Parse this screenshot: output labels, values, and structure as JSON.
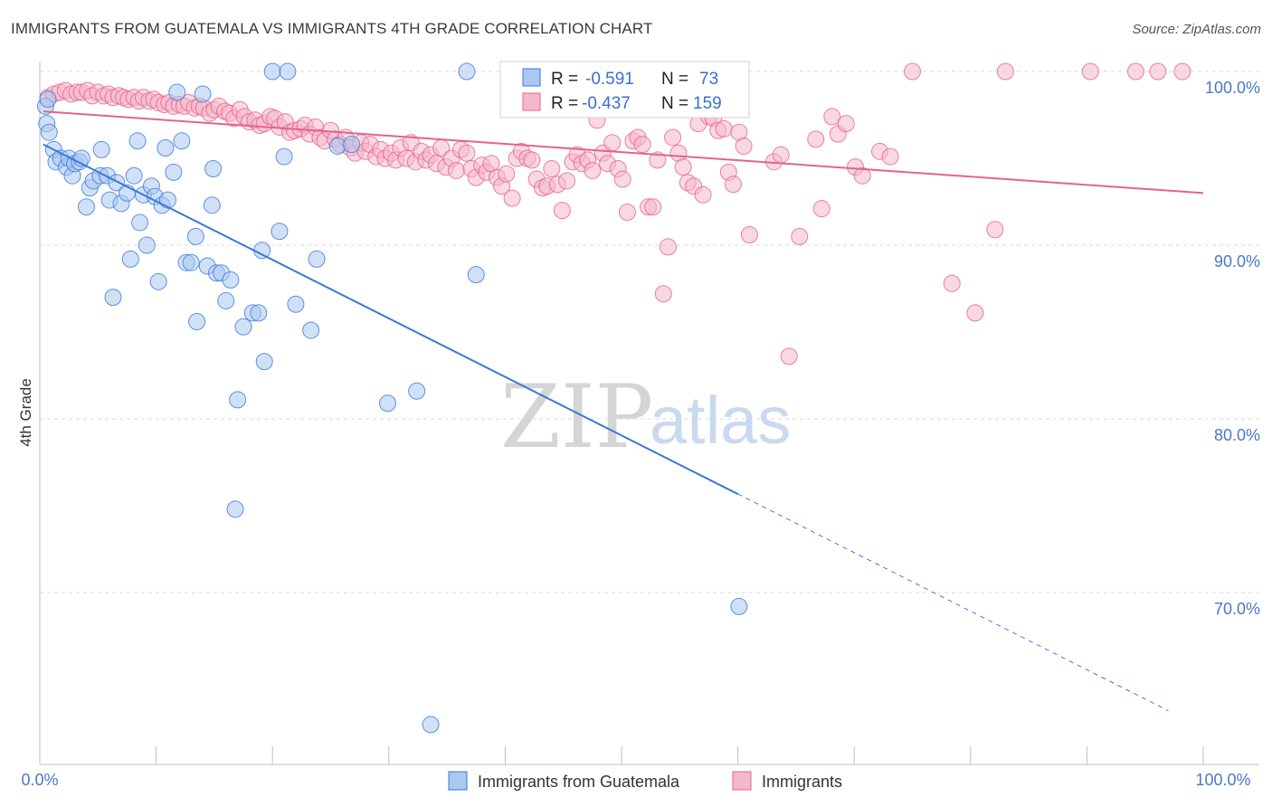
{
  "title": "IMMIGRANTS FROM GUATEMALA VS IMMIGRANTS 4TH GRADE CORRELATION CHART",
  "source": "Source: ZipAtlas.com",
  "watermark": {
    "zip": "ZIP",
    "atlas": "atlas"
  },
  "colors": {
    "blue": "#3b78d8",
    "blue_fill": "#aac8f0",
    "pink": "#e2648c",
    "pink_fill": "#f5b8ca",
    "tick_blue": "#4a78c8",
    "grid": "#d9d9d9"
  },
  "legend_box": {
    "rows": [
      {
        "r_label": "R =",
        "r_value": "-0.591",
        "n_label": "N =",
        "n_value": "73"
      },
      {
        "r_label": "R =",
        "r_value": "-0.437",
        "n_label": "N =",
        "n_value": "159"
      }
    ]
  },
  "chart_data": {
    "type": "scatter",
    "xlabel": "",
    "ylabel": "4th Grade",
    "xlim": [
      0,
      100
    ],
    "ylim": [
      62,
      101.5
    ],
    "x_tick_labels": [
      "0.0%",
      "100.0%"
    ],
    "y_ticks": [
      100,
      90,
      80,
      70
    ],
    "y_tick_labels": [
      "100.0%",
      "90.0%",
      "80.0%",
      "70.0%"
    ],
    "grid": "horizontal dashed",
    "legend_position": "bottom",
    "series": [
      {
        "name": "Immigrants from Guatemala",
        "color": "#3b78d8",
        "trend": {
          "x_start": 0.3,
          "y_start": 95.8,
          "x_solid_end": 60,
          "x_end": 97,
          "y_end": 63.2
        },
        "points": [
          [
            0.5,
            98.0
          ],
          [
            0.6,
            97.0
          ],
          [
            0.8,
            96.5
          ],
          [
            1.2,
            95.5
          ],
          [
            1.4,
            94.8
          ],
          [
            1.8,
            95.0
          ],
          [
            2.3,
            94.5
          ],
          [
            2.5,
            95.0
          ],
          [
            2.8,
            94.0
          ],
          [
            3.0,
            94.7
          ],
          [
            3.4,
            94.8
          ],
          [
            3.6,
            95.0
          ],
          [
            4.0,
            92.2
          ],
          [
            4.3,
            93.3
          ],
          [
            4.6,
            93.7
          ],
          [
            5.2,
            94.0
          ],
          [
            5.3,
            95.5
          ],
          [
            5.8,
            94.0
          ],
          [
            6.0,
            92.6
          ],
          [
            6.3,
            87.0
          ],
          [
            6.6,
            93.6
          ],
          [
            7.0,
            92.4
          ],
          [
            7.5,
            93.0
          ],
          [
            7.8,
            89.2
          ],
          [
            8.1,
            94.0
          ],
          [
            8.4,
            96.0
          ],
          [
            8.6,
            91.3
          ],
          [
            8.9,
            92.9
          ],
          [
            9.2,
            90.0
          ],
          [
            9.6,
            93.4
          ],
          [
            9.9,
            92.8
          ],
          [
            10.2,
            87.9
          ],
          [
            10.5,
            92.3
          ],
          [
            10.8,
            95.6
          ],
          [
            11.0,
            92.6
          ],
          [
            11.5,
            94.2
          ],
          [
            11.8,
            98.8
          ],
          [
            12.2,
            96.0
          ],
          [
            12.6,
            89.0
          ],
          [
            13.0,
            89.0
          ],
          [
            13.4,
            90.5
          ],
          [
            13.5,
            85.6
          ],
          [
            14.0,
            98.7
          ],
          [
            14.4,
            88.8
          ],
          [
            14.8,
            92.3
          ],
          [
            14.9,
            94.4
          ],
          [
            15.2,
            88.4
          ],
          [
            15.6,
            88.4
          ],
          [
            16.0,
            86.8
          ],
          [
            16.4,
            88.0
          ],
          [
            16.8,
            74.8
          ],
          [
            17.0,
            81.1
          ],
          [
            17.5,
            85.3
          ],
          [
            18.3,
            86.1
          ],
          [
            18.8,
            86.1
          ],
          [
            19.1,
            89.7
          ],
          [
            19.3,
            83.3
          ],
          [
            20.0,
            100.0
          ],
          [
            20.6,
            90.8
          ],
          [
            21.0,
            95.1
          ],
          [
            21.3,
            100.0
          ],
          [
            22.0,
            86.6
          ],
          [
            23.3,
            85.1
          ],
          [
            23.8,
            89.2
          ],
          [
            25.6,
            95.7
          ],
          [
            26.8,
            95.8
          ],
          [
            29.9,
            80.9
          ],
          [
            32.4,
            81.6
          ],
          [
            33.6,
            62.4
          ],
          [
            36.7,
            100.0
          ],
          [
            37.5,
            88.3
          ],
          [
            60.1,
            69.2
          ],
          [
            0.7,
            98.4
          ]
        ]
      },
      {
        "name": "Immigrants",
        "color": "#e2648c",
        "trend": {
          "x_start": 0.3,
          "y_start": 97.7,
          "x_end": 100,
          "y_end": 93.0
        },
        "points": [
          [
            0.7,
            98.5
          ],
          [
            1.2,
            98.7
          ],
          [
            1.7,
            98.8
          ],
          [
            2.2,
            98.9
          ],
          [
            2.7,
            98.7
          ],
          [
            3.2,
            98.8
          ],
          [
            3.6,
            98.8
          ],
          [
            4.1,
            98.9
          ],
          [
            4.5,
            98.6
          ],
          [
            5.0,
            98.8
          ],
          [
            5.5,
            98.6
          ],
          [
            5.9,
            98.7
          ],
          [
            6.3,
            98.5
          ],
          [
            6.8,
            98.6
          ],
          [
            7.2,
            98.5
          ],
          [
            7.6,
            98.4
          ],
          [
            8.1,
            98.5
          ],
          [
            8.5,
            98.3
          ],
          [
            8.9,
            98.5
          ],
          [
            9.4,
            98.3
          ],
          [
            9.8,
            98.4
          ],
          [
            10.2,
            98.2
          ],
          [
            10.7,
            98.1
          ],
          [
            11.1,
            98.2
          ],
          [
            11.5,
            98.0
          ],
          [
            12.0,
            98.1
          ],
          [
            12.4,
            98.0
          ],
          [
            12.8,
            98.2
          ],
          [
            13.3,
            97.9
          ],
          [
            13.7,
            98.0
          ],
          [
            14.1,
            97.9
          ],
          [
            14.6,
            97.6
          ],
          [
            15.0,
            97.8
          ],
          [
            15.4,
            98.0
          ],
          [
            15.9,
            97.7
          ],
          [
            16.3,
            97.6
          ],
          [
            16.7,
            97.3
          ],
          [
            17.2,
            97.8
          ],
          [
            17.6,
            97.4
          ],
          [
            18.0,
            97.1
          ],
          [
            18.5,
            97.2
          ],
          [
            18.9,
            96.9
          ],
          [
            19.3,
            97.0
          ],
          [
            19.8,
            97.4
          ],
          [
            20.2,
            97.3
          ],
          [
            20.6,
            96.8
          ],
          [
            21.1,
            97.1
          ],
          [
            21.5,
            96.5
          ],
          [
            21.9,
            96.6
          ],
          [
            22.4,
            96.7
          ],
          [
            22.8,
            96.9
          ],
          [
            23.2,
            96.4
          ],
          [
            23.7,
            96.8
          ],
          [
            24.1,
            96.2
          ],
          [
            24.5,
            96.0
          ],
          [
            25.0,
            96.6
          ],
          [
            25.4,
            96.1
          ],
          [
            25.8,
            95.8
          ],
          [
            26.3,
            96.2
          ],
          [
            26.7,
            95.6
          ],
          [
            27.1,
            95.3
          ],
          [
            27.6,
            95.9
          ],
          [
            28.0,
            95.4
          ],
          [
            28.4,
            95.8
          ],
          [
            28.9,
            95.1
          ],
          [
            29.3,
            95.5
          ],
          [
            29.7,
            95.0
          ],
          [
            30.2,
            95.3
          ],
          [
            30.6,
            94.9
          ],
          [
            31.0,
            95.6
          ],
          [
            31.5,
            95.0
          ],
          [
            31.9,
            95.9
          ],
          [
            32.3,
            94.8
          ],
          [
            32.8,
            95.4
          ],
          [
            33.2,
            94.9
          ],
          [
            33.6,
            95.2
          ],
          [
            34.1,
            94.7
          ],
          [
            34.5,
            95.6
          ],
          [
            34.9,
            94.5
          ],
          [
            35.4,
            95.0
          ],
          [
            35.8,
            94.3
          ],
          [
            36.2,
            95.5
          ],
          [
            36.7,
            95.3
          ],
          [
            37.1,
            94.4
          ],
          [
            37.5,
            93.9
          ],
          [
            38.0,
            94.6
          ],
          [
            38.4,
            94.2
          ],
          [
            38.8,
            94.7
          ],
          [
            39.3,
            93.9
          ],
          [
            39.7,
            93.4
          ],
          [
            40.1,
            94.1
          ],
          [
            40.6,
            92.7
          ],
          [
            41.0,
            95.0
          ],
          [
            41.4,
            95.4
          ],
          [
            41.9,
            95.0
          ],
          [
            42.3,
            94.9
          ],
          [
            42.7,
            93.8
          ],
          [
            43.2,
            93.3
          ],
          [
            43.6,
            93.4
          ],
          [
            44.0,
            94.4
          ],
          [
            44.5,
            93.5
          ],
          [
            44.9,
            92.0
          ],
          [
            45.3,
            93.7
          ],
          [
            45.8,
            94.8
          ],
          [
            46.2,
            95.2
          ],
          [
            46.6,
            94.7
          ],
          [
            47.1,
            94.9
          ],
          [
            47.5,
            94.3
          ],
          [
            47.9,
            97.2
          ],
          [
            48.4,
            95.3
          ],
          [
            48.8,
            94.7
          ],
          [
            49.2,
            95.9
          ],
          [
            49.7,
            94.4
          ],
          [
            50.1,
            93.8
          ],
          [
            50.5,
            91.9
          ],
          [
            51.0,
            96.0
          ],
          [
            51.4,
            96.2
          ],
          [
            51.8,
            95.8
          ],
          [
            52.3,
            92.2
          ],
          [
            52.7,
            92.2
          ],
          [
            53.1,
            94.9
          ],
          [
            53.6,
            87.2
          ],
          [
            54.0,
            89.9
          ],
          [
            54.4,
            96.2
          ],
          [
            54.9,
            95.3
          ],
          [
            55.3,
            94.5
          ],
          [
            55.7,
            93.6
          ],
          [
            56.2,
            93.4
          ],
          [
            56.6,
            97.0
          ],
          [
            57.0,
            92.9
          ],
          [
            57.5,
            97.4
          ],
          [
            57.9,
            97.3
          ],
          [
            58.3,
            96.6
          ],
          [
            58.8,
            96.7
          ],
          [
            59.2,
            94.2
          ],
          [
            59.6,
            93.5
          ],
          [
            60.1,
            96.5
          ],
          [
            60.5,
            95.7
          ],
          [
            61.0,
            90.6
          ],
          [
            63.1,
            94.8
          ],
          [
            63.7,
            95.2
          ],
          [
            64.4,
            83.6
          ],
          [
            65.3,
            90.5
          ],
          [
            66.7,
            96.1
          ],
          [
            67.2,
            92.1
          ],
          [
            68.1,
            97.4
          ],
          [
            68.6,
            96.4
          ],
          [
            69.3,
            97.0
          ],
          [
            70.1,
            94.5
          ],
          [
            70.7,
            94.0
          ],
          [
            72.2,
            95.4
          ],
          [
            73.1,
            95.1
          ],
          [
            75.0,
            100.0
          ],
          [
            78.4,
            87.8
          ],
          [
            80.4,
            86.1
          ],
          [
            82.1,
            90.9
          ],
          [
            83.0,
            100.0
          ],
          [
            90.3,
            100.0
          ],
          [
            94.2,
            100.0
          ],
          [
            96.1,
            100.0
          ],
          [
            98.2,
            100.0
          ]
        ]
      }
    ]
  }
}
